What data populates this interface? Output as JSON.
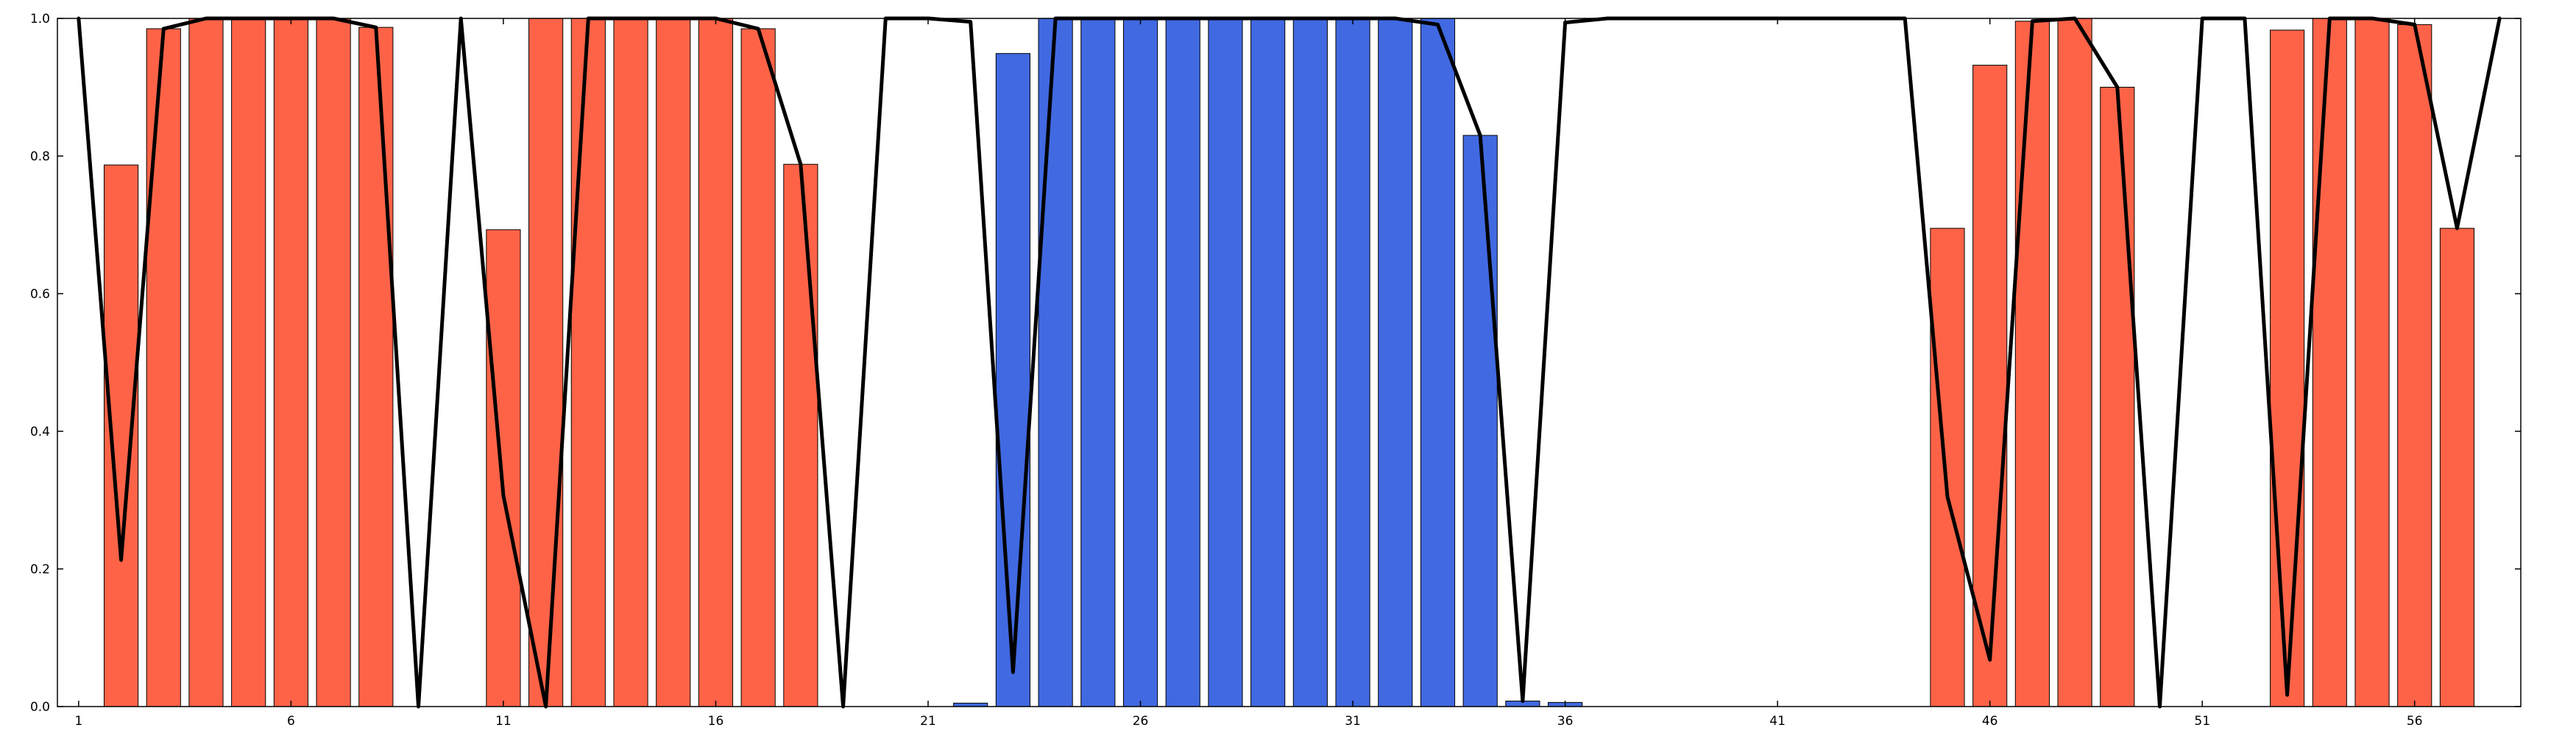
{
  "chart_data": {
    "type": "bar",
    "x": [
      1,
      2,
      3,
      4,
      5,
      6,
      7,
      8,
      9,
      10,
      11,
      12,
      13,
      14,
      15,
      16,
      17,
      18,
      19,
      20,
      21,
      22,
      23,
      24,
      25,
      26,
      27,
      28,
      29,
      30,
      31,
      32,
      33,
      34,
      35,
      36,
      37,
      38,
      39,
      40,
      41,
      42,
      43,
      44,
      45,
      46,
      47,
      48,
      49,
      50,
      51,
      52,
      53,
      54,
      55,
      56,
      57,
      58
    ],
    "xlim": [
      0.5,
      58.5
    ],
    "ylim": [
      0.0,
      1.0
    ],
    "xticks": [
      1,
      6,
      11,
      16,
      21,
      26,
      31,
      36,
      41,
      46,
      51,
      56
    ],
    "xtick_labels": [
      "1",
      "6",
      "11",
      "16",
      "21",
      "26",
      "31",
      "36",
      "41",
      "46",
      "51",
      "56"
    ],
    "yticks": [
      0.0,
      0.2,
      0.4,
      0.6,
      0.8,
      1.0
    ],
    "ytick_labels": [
      "0.0",
      "0.2",
      "0.4",
      "0.6",
      "0.8",
      "1.0"
    ],
    "grid": false,
    "legend": "none",
    "title": "",
    "xlabel": "",
    "ylabel": "",
    "series": [
      {
        "kind": "bar",
        "color": "#FF6347",
        "values": [
          0.0,
          0.787,
          0.985,
          1.0,
          1.0,
          1.0,
          1.0,
          0.987,
          0.0,
          0.0,
          0.693,
          1.0,
          1.0,
          1.0,
          1.0,
          1.0,
          0.985,
          0.788,
          0.0,
          0.0,
          0.0,
          0.0,
          0.0,
          0.0,
          0.0,
          0.0,
          0.0,
          0.0,
          0.0,
          0.0,
          0.0,
          0.0,
          0.0,
          0.0,
          0.0,
          0.0,
          0.0,
          0.0,
          0.0,
          0.0,
          0.0,
          0.0,
          0.0,
          0.0,
          0.695,
          0.932,
          0.996,
          1.0,
          0.9,
          0.0,
          0.0,
          0.0,
          0.983,
          1.0,
          1.0,
          0.991,
          0.695,
          0.0
        ]
      },
      {
        "kind": "bar",
        "color": "#4169E1",
        "values": [
          0.0,
          0.0,
          0.0,
          0.0,
          0.0,
          0.0,
          0.0,
          0.0,
          0.0,
          0.0,
          0.0,
          0.0,
          0.0,
          0.0,
          0.0,
          0.0,
          0.0,
          0.0,
          0.0,
          0.0,
          0.0,
          0.005,
          0.949,
          1.0,
          1.0,
          1.0,
          1.0,
          1.0,
          1.0,
          1.0,
          1.0,
          1.0,
          1.0,
          0.83,
          0.008,
          0.006,
          0.0,
          0.0,
          0.0,
          0.0,
          0.0,
          0.0,
          0.0,
          0.0,
          0.0,
          0.0,
          0.0,
          0.0,
          0.0,
          0.0,
          0.0,
          0.0,
          0.0,
          0.0,
          0.0,
          0.0,
          0.0,
          0.0
        ]
      },
      {
        "kind": "line",
        "color": "#000000",
        "values": [
          1.0,
          0.213,
          0.985,
          1.0,
          1.0,
          1.0,
          1.0,
          0.987,
          0.0,
          1.0,
          0.307,
          0.0,
          1.0,
          1.0,
          1.0,
          1.0,
          0.985,
          0.788,
          0.0,
          1.0,
          1.0,
          0.995,
          0.05,
          1.0,
          1.0,
          1.0,
          1.0,
          1.0,
          1.0,
          1.0,
          1.0,
          1.0,
          0.991,
          0.83,
          0.008,
          0.994,
          1.0,
          1.0,
          1.0,
          1.0,
          1.0,
          1.0,
          1.0,
          1.0,
          0.305,
          0.068,
          0.996,
          1.0,
          0.9,
          0.0,
          1.0,
          1.0,
          0.017,
          1.0,
          1.0,
          0.991,
          0.695,
          1.0
        ]
      }
    ]
  }
}
